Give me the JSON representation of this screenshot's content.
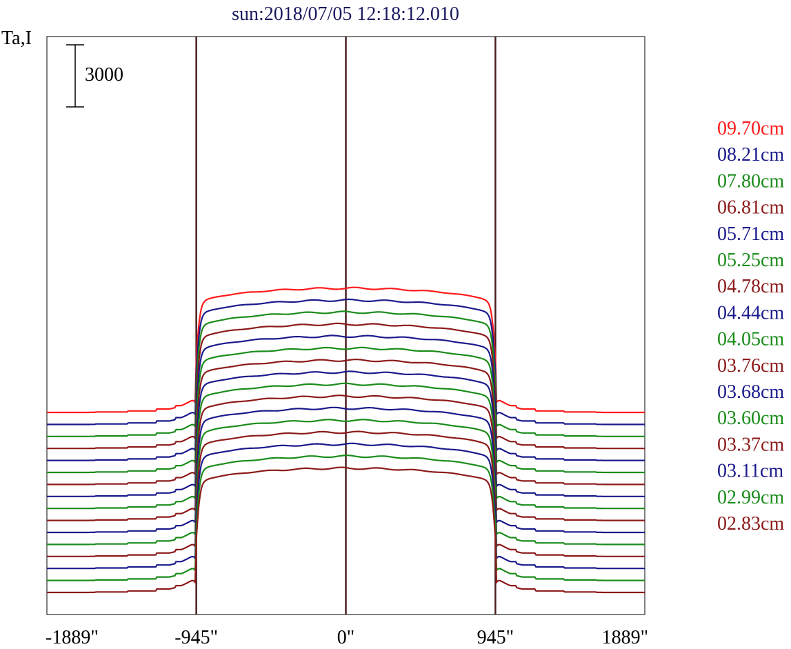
{
  "chart_data": {
    "type": "line",
    "title": "sun:2018/07/05 12:18:12.010",
    "ylabel": "Ta,I",
    "xlabel": "",
    "xlim": [
      -1889,
      1889
    ],
    "x_ticks": [
      "-1889\"",
      "-945\"",
      "0\"",
      "945\"",
      "1889\""
    ],
    "x_tick_values": [
      -1889,
      -945,
      0,
      945,
      1889
    ],
    "markers_x": [
      -945,
      0,
      945
    ],
    "scale_bar": {
      "label": "3000",
      "value": 3000
    },
    "grid": false,
    "legend_position": "right",
    "plateau_ta": 6000,
    "series": [
      {
        "name": "09.70cm",
        "color": "#ff1a1a",
        "offset_ta": 8700
      },
      {
        "name": "08.21cm",
        "color": "#1a1a8c",
        "offset_ta": 8120
      },
      {
        "name": "07.80cm",
        "color": "#1a8c1a",
        "offset_ta": 7540
      },
      {
        "name": "06.81cm",
        "color": "#8c1a1a",
        "offset_ta": 6960
      },
      {
        "name": "05.71cm",
        "color": "#1a1a8c",
        "offset_ta": 6380
      },
      {
        "name": "05.25cm",
        "color": "#1a8c1a",
        "offset_ta": 5800
      },
      {
        "name": "04.78cm",
        "color": "#8c1a1a",
        "offset_ta": 5220
      },
      {
        "name": "04.44cm",
        "color": "#1a1a8c",
        "offset_ta": 4640
      },
      {
        "name": "04.05cm",
        "color": "#1a8c1a",
        "offset_ta": 4060
      },
      {
        "name": "03.76cm",
        "color": "#8c1a1a",
        "offset_ta": 3480
      },
      {
        "name": "03.68cm",
        "color": "#1a1a8c",
        "offset_ta": 2900
      },
      {
        "name": "03.60cm",
        "color": "#1a8c1a",
        "offset_ta": 2320
      },
      {
        "name": "03.37cm",
        "color": "#8c1a1a",
        "offset_ta": 1740
      },
      {
        "name": "03.11cm",
        "color": "#1a1a8c",
        "offset_ta": 1160
      },
      {
        "name": "02.99cm",
        "color": "#1a8c1a",
        "offset_ta": 580
      },
      {
        "name": "02.83cm",
        "color": "#8c1a1a",
        "offset_ta": 0
      }
    ]
  }
}
